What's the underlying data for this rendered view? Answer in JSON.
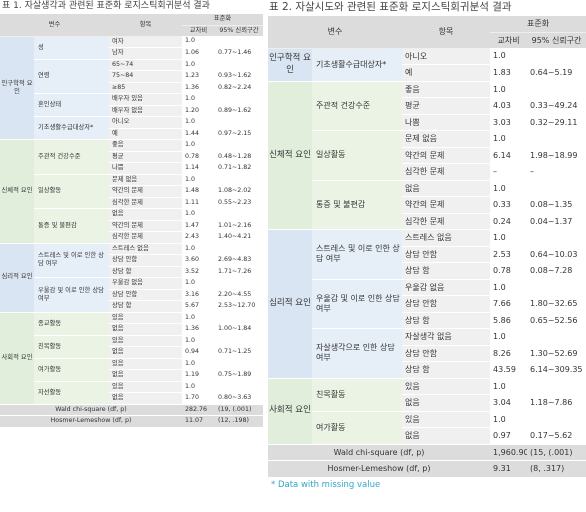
{
  "left": {
    "title": "표 1. 자살생각과 관련된 표준화 로지스틱회귀분석 결과",
    "headers": {
      "var": "변수",
      "item": "항목",
      "group": "표준화",
      "or": "교차비",
      "ci": "95% 신뢰구간"
    },
    "categories": [
      "인구학적 요인",
      "신체적 요인",
      "심리적 요인",
      "사회적 요인"
    ],
    "variables": {
      "sex": "성",
      "age": "연령",
      "marital": "혼인상태",
      "welfare": "기초생활수급대상자*",
      "health": "주관적 건강수준",
      "daily": "일상활동",
      "pain": "통증 및 불편감",
      "stress": "스트레스 및 이로 인한 상담 여부",
      "depression": "우울감 및 이로 인한 상담 여부",
      "religion": "종교활동",
      "friendship": "친목활동",
      "leisure": "여가활동",
      "volunteer": "자선활동"
    },
    "rows": [
      {
        "level": "여자",
        "or": "1.0",
        "ci": ""
      },
      {
        "level": "남자",
        "or": "1.06",
        "ci": "0.77~1.46"
      },
      {
        "level": "65~74",
        "or": "1.0",
        "ci": ""
      },
      {
        "level": "75~84",
        "or": "1.23",
        "ci": "0.93~1.62"
      },
      {
        "level": "≥85",
        "or": "1.36",
        "ci": "0.82~2.24"
      },
      {
        "level": "배우자 있음",
        "or": "1.0",
        "ci": ""
      },
      {
        "level": "배우자 없음",
        "or": "1.20",
        "ci": "0.89~1.62"
      },
      {
        "level": "아니오",
        "or": "1.0",
        "ci": ""
      },
      {
        "level": "예",
        "or": "1.44",
        "ci": "0.97~2.15"
      },
      {
        "level": "좋음",
        "or": "1.0",
        "ci": ""
      },
      {
        "level": "평균",
        "or": "0.78",
        "ci": "0.48~1.28"
      },
      {
        "level": "나쁨",
        "or": "1.14",
        "ci": "0.71~1.82"
      },
      {
        "level": "문제 없음",
        "or": "1.0",
        "ci": ""
      },
      {
        "level": "약간의 문제",
        "or": "1.48",
        "ci": "1.08~2.02"
      },
      {
        "level": "심각한 문제",
        "or": "1.11",
        "ci": "0.55~2.23"
      },
      {
        "level": "없음",
        "or": "1.0",
        "ci": ""
      },
      {
        "level": "약간의 문제",
        "or": "1.47",
        "ci": "1.01~2.16"
      },
      {
        "level": "심각한 문제",
        "or": "2.43",
        "ci": "1.40~4.21"
      },
      {
        "level": "스트레스 없음",
        "or": "1.0",
        "ci": ""
      },
      {
        "level": "상담 안함",
        "or": "3.60",
        "ci": "2.69~4.83"
      },
      {
        "level": "상담 함",
        "or": "3.52",
        "ci": "1.71~7.26"
      },
      {
        "level": "우울감 없음",
        "or": "1.0",
        "ci": ""
      },
      {
        "level": "상담 안함",
        "or": "3.16",
        "ci": "2.20~4.55"
      },
      {
        "level": "상담 함",
        "or": "5.67",
        "ci": "2.53~12.70"
      },
      {
        "level": "있음",
        "or": "1.0",
        "ci": ""
      },
      {
        "level": "없음",
        "or": "1.36",
        "ci": "1.00~1.84"
      },
      {
        "level": "있음",
        "or": "1.0",
        "ci": ""
      },
      {
        "level": "없음",
        "or": "0.94",
        "ci": "0.71~1.25"
      },
      {
        "level": "있음",
        "or": "1.0",
        "ci": ""
      },
      {
        "level": "없음",
        "or": "1.19",
        "ci": "0.75~1.89"
      },
      {
        "level": "있음",
        "or": "1.0",
        "ci": ""
      },
      {
        "level": "없음",
        "or": "1.70",
        "ci": "0.80~3.63"
      }
    ],
    "footer": [
      {
        "label": "Wald chi-square (df, p)",
        "or": "282.76",
        "ci": "(19, (.001)"
      },
      {
        "label": "Hosmer-Lemeshow (df, p)",
        "or": "11.07",
        "ci": "(12, .198)"
      }
    ]
  },
  "right": {
    "title": "표 2. 자살시도와 관련된 표준화 로지스틱회귀분석 결과",
    "headers": {
      "var": "변수",
      "item": "항목",
      "group": "표준화",
      "or": "교차비",
      "ci": "95% 신뢰구간"
    },
    "categories": [
      "인구학적 요인",
      "신체적 요인",
      "심리적 요인",
      "사회적 요인"
    ],
    "variables": {
      "welfare": "기초생활수급대상자*",
      "health": "주관적 건강수준",
      "daily": "일상활동",
      "pain": "통증 및 불편감",
      "stress": "스트레스 및 이로 인한 상담 여부",
      "depression": "우울감 및 이로 인한 상담 여부",
      "suicidal": "자살생각으로 인한 상담 여부",
      "friendship": "친목활동",
      "leisure": "여가활동"
    },
    "rows": [
      {
        "level": "아니오",
        "or": "1.0",
        "ci": ""
      },
      {
        "level": "예",
        "or": "1.83",
        "ci": "0.64~5.19"
      },
      {
        "level": "좋음",
        "or": "1.0",
        "ci": ""
      },
      {
        "level": "평균",
        "or": "4.03",
        "ci": "0.33~49.24"
      },
      {
        "level": "나쁨",
        "or": "3.03",
        "ci": "0.32~29.11"
      },
      {
        "level": "문제 없음",
        "or": "1.0",
        "ci": ""
      },
      {
        "level": "약간의 문제",
        "or": "6.14",
        "ci": "1.98~18.99"
      },
      {
        "level": "심각한 문제",
        "or": "–",
        "ci": "–"
      },
      {
        "level": "없음",
        "or": "1.0",
        "ci": ""
      },
      {
        "level": "약간의 문제",
        "or": "0.33",
        "ci": "0.08~1.35"
      },
      {
        "level": "심각한 문제",
        "or": "0.24",
        "ci": "0.04~1.37"
      },
      {
        "level": "스트레스 없음",
        "or": "1.0",
        "ci": ""
      },
      {
        "level": "상담 안함",
        "or": "2.53",
        "ci": "0.64~10.03"
      },
      {
        "level": "상담 함",
        "or": "0.78",
        "ci": "0.08~7.28"
      },
      {
        "level": "우울감 없음",
        "or": "1.0",
        "ci": ""
      },
      {
        "level": "상담 안함",
        "or": "7.66",
        "ci": "1.80~32.65"
      },
      {
        "level": "상담 함",
        "or": "5.86",
        "ci": "0.65~52.56"
      },
      {
        "level": "자살생각 없음",
        "or": "1.0",
        "ci": ""
      },
      {
        "level": "상담 안함",
        "or": "8.26",
        "ci": "1.30~52.69"
      },
      {
        "level": "상담 함",
        "or": "43.59",
        "ci": "6.14~309.35"
      },
      {
        "level": "있음",
        "or": "1.0",
        "ci": ""
      },
      {
        "level": "없음",
        "or": "3.04",
        "ci": "1.18~7.86"
      },
      {
        "level": "있음",
        "or": "1.0",
        "ci": ""
      },
      {
        "level": "없음",
        "or": "0.97",
        "ci": "0.17~5.62"
      }
    ],
    "footer": [
      {
        "label": "Wald chi-square (df, p)",
        "or": "1,960.90",
        "ci": "(15, (.001)"
      },
      {
        "label": "Hosmer-Lemeshow (df, p)",
        "or": "9.31",
        "ci": "(8, .317)"
      }
    ],
    "note": "* Data with missing value"
  }
}
